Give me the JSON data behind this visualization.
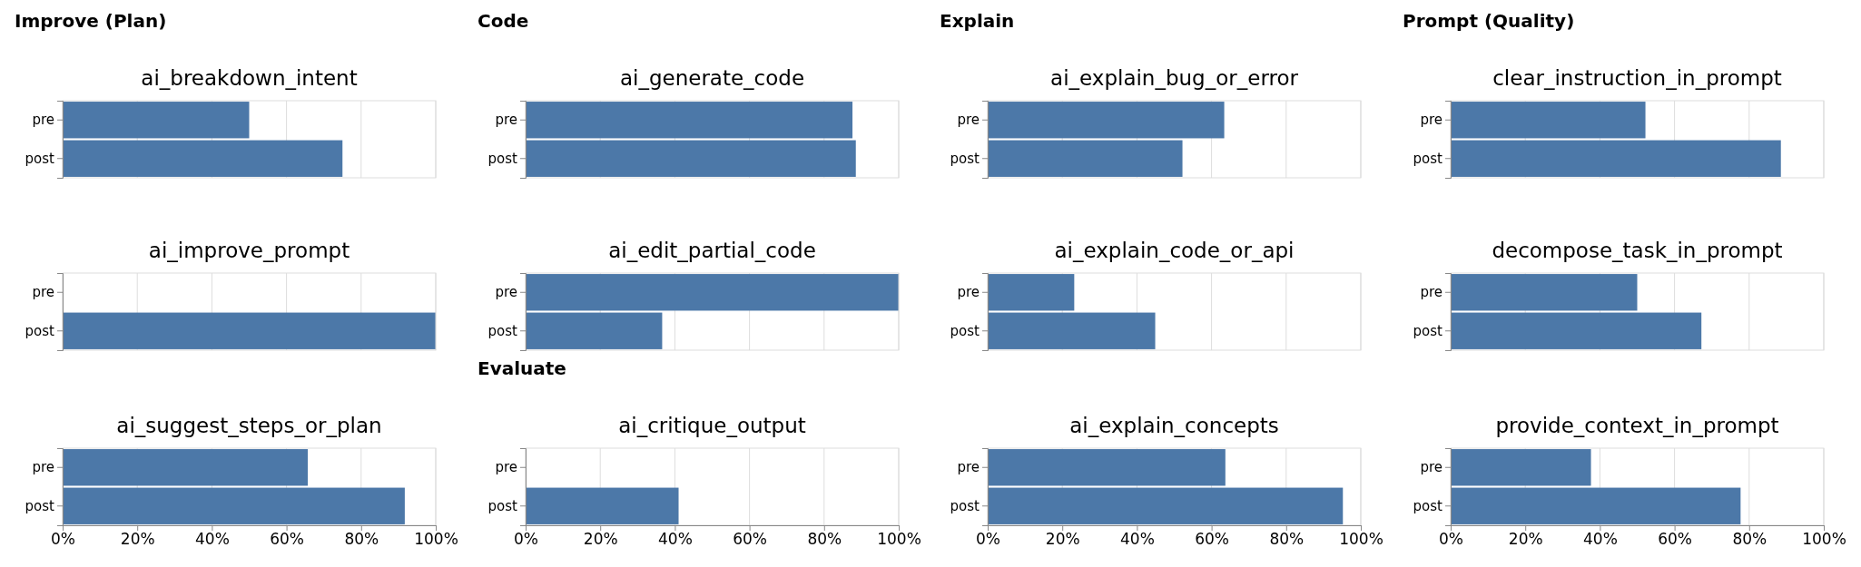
{
  "chart_data": [
    {
      "type": "bar",
      "orientation": "horizontal",
      "annotations": [
        "Improve (Plan)"
      ],
      "title": "ai_breakdown_intent",
      "categories": [
        "pre",
        "post"
      ],
      "values": [
        50,
        75
      ],
      "color": "#4c78a8",
      "xlim": [
        0,
        100
      ],
      "xticks": [
        0,
        20,
        40,
        60,
        80,
        100
      ],
      "grid": "x",
      "tick_labels": "y"
    },
    {
      "type": "bar",
      "orientation": "horizontal",
      "annotations": [
        "Code"
      ],
      "title": "ai_generate_code",
      "categories": [
        "pre",
        "post"
      ],
      "values": [
        87.6,
        88.5
      ],
      "color": "#4c78a8",
      "xlim": [
        0,
        100
      ],
      "xticks": [
        0,
        20,
        40,
        60,
        80,
        100
      ],
      "grid": "x",
      "tick_labels": "y"
    },
    {
      "type": "bar",
      "orientation": "horizontal",
      "annotations": [
        "Explain"
      ],
      "title": "ai_explain_bug_or_error",
      "categories": [
        "pre",
        "post"
      ],
      "values": [
        63.4,
        52.2
      ],
      "color": "#4c78a8",
      "xlim": [
        0,
        100
      ],
      "xticks": [
        0,
        20,
        40,
        60,
        80,
        100
      ],
      "grid": "x",
      "tick_labels": "y"
    },
    {
      "type": "bar",
      "orientation": "horizontal",
      "annotations": [
        "Prompt (Quality)"
      ],
      "title": "clear_instruction_in_prompt",
      "categories": [
        "pre",
        "post"
      ],
      "values": [
        52.2,
        88.5
      ],
      "color": "#4c78a8",
      "xlim": [
        0,
        100
      ],
      "xticks": [
        0,
        20,
        40,
        60,
        80,
        100
      ],
      "grid": "x",
      "tick_labels": "y"
    },
    {
      "type": "bar",
      "orientation": "horizontal",
      "title": "ai_improve_prompt",
      "categories": [
        "pre",
        "post"
      ],
      "values": [
        0,
        100
      ],
      "color": "#4c78a8",
      "xlim": [
        0,
        100
      ],
      "xticks": [
        0,
        20,
        40,
        60,
        80,
        100
      ],
      "grid": "x",
      "tick_labels": "y"
    },
    {
      "type": "bar",
      "orientation": "horizontal",
      "title": "ai_edit_partial_code",
      "categories": [
        "pre",
        "post"
      ],
      "values": [
        100,
        36.6
      ],
      "color": "#4c78a8",
      "xlim": [
        0,
        100
      ],
      "xticks": [
        0,
        20,
        40,
        60,
        80,
        100
      ],
      "grid": "x",
      "tick_labels": "y"
    },
    {
      "type": "bar",
      "orientation": "horizontal",
      "title": "ai_explain_code_or_api",
      "categories": [
        "pre",
        "post"
      ],
      "values": [
        23.2,
        44.9
      ],
      "color": "#4c78a8",
      "xlim": [
        0,
        100
      ],
      "xticks": [
        0,
        20,
        40,
        60,
        80,
        100
      ],
      "grid": "x",
      "tick_labels": "y"
    },
    {
      "type": "bar",
      "orientation": "horizontal",
      "title": "decompose_task_in_prompt",
      "categories": [
        "pre",
        "post"
      ],
      "values": [
        50,
        67.2
      ],
      "color": "#4c78a8",
      "xlim": [
        0,
        100
      ],
      "xticks": [
        0,
        20,
        40,
        60,
        80,
        100
      ],
      "grid": "x",
      "tick_labels": "y"
    },
    {
      "type": "bar",
      "orientation": "horizontal",
      "title": "ai_suggest_steps_or_plan",
      "categories": [
        "pre",
        "post"
      ],
      "values": [
        65.7,
        91.7
      ],
      "color": "#4c78a8",
      "xlim": [
        0,
        100
      ],
      "xticks": [
        {
          "value": 0,
          "label": "0%"
        },
        {
          "value": 20,
          "label": "20%"
        },
        {
          "value": 40,
          "label": "40%"
        },
        {
          "value": 60,
          "label": "60%"
        },
        {
          "value": 80,
          "label": "80%"
        },
        {
          "value": 100,
          "label": "100%"
        }
      ],
      "grid": "x"
    },
    {
      "type": "bar",
      "orientation": "horizontal",
      "annotations": [
        "Evaluate"
      ],
      "title": "ai_critique_output",
      "categories": [
        "pre",
        "post"
      ],
      "values": [
        0,
        41
      ],
      "color": "#4c78a8",
      "xlim": [
        0,
        100
      ],
      "xticks": [
        {
          "value": 0,
          "label": "0%"
        },
        {
          "value": 20,
          "label": "20%"
        },
        {
          "value": 40,
          "label": "40%"
        },
        {
          "value": 60,
          "label": "60%"
        },
        {
          "value": 80,
          "label": "80%"
        },
        {
          "value": 100,
          "label": "100%"
        }
      ],
      "grid": "x"
    },
    {
      "type": "bar",
      "orientation": "horizontal",
      "title": "ai_explain_concepts",
      "categories": [
        "pre",
        "post"
      ],
      "values": [
        63.7,
        95.2
      ],
      "color": "#4c78a8",
      "xlim": [
        0,
        100
      ],
      "xticks": [
        {
          "value": 0,
          "label": "0%"
        },
        {
          "value": 20,
          "label": "20%"
        },
        {
          "value": 40,
          "label": "40%"
        },
        {
          "value": 60,
          "label": "60%"
        },
        {
          "value": 80,
          "label": "80%"
        },
        {
          "value": 100,
          "label": "100%"
        }
      ],
      "grid": "x"
    },
    {
      "type": "bar",
      "orientation": "horizontal",
      "title": "provide_context_in_prompt",
      "categories": [
        "pre",
        "post"
      ],
      "values": [
        37.6,
        77.7
      ],
      "color": "#4c78a8",
      "xlim": [
        0,
        100
      ],
      "xticks": [
        {
          "value": 0,
          "label": "0%"
        },
        {
          "value": 20,
          "label": "20%"
        },
        {
          "value": 40,
          "label": "40%"
        },
        {
          "value": 60,
          "label": "60%"
        },
        {
          "value": 80,
          "label": "80%"
        },
        {
          "value": 100,
          "label": "100%"
        }
      ],
      "grid": "x"
    }
  ]
}
